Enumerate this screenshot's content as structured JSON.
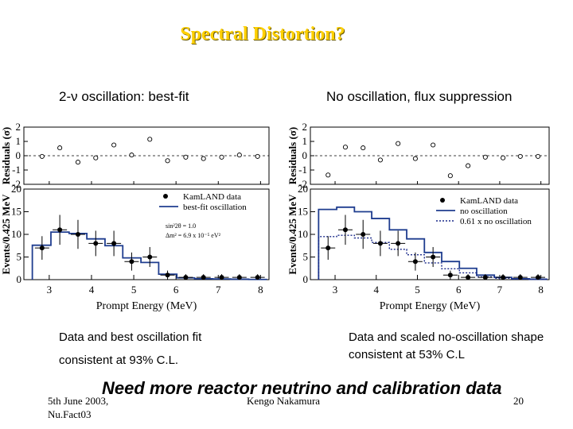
{
  "slide": {
    "title": "Spectral Distortion?",
    "left_title": "2-ν oscillation: best-fit",
    "right_title": "No oscillation, flux suppression",
    "left_caption_1": "Data and best oscillation fit",
    "left_caption_2": "consistent at 93% C.L.",
    "right_caption": "Data and scaled no-oscillation shape consistent at 53% C.L",
    "note": "Need more reactor neutrino and calibration data",
    "footer_date": "5th June 2003,",
    "footer_conf": "Nu.Fact03",
    "footer_author": "Kengo Nakamura",
    "page_number": "20"
  },
  "chart_data": [
    {
      "type": "line",
      "title": "2-ν oscillation: best-fit",
      "xlabel": "Prompt Energy (MeV)",
      "ylabel_top": "Residuals (σ)",
      "ylabel_bottom": "Events/0.425 MeV",
      "xlim": [
        2.4,
        8.2
      ],
      "ylim_residual": [
        -2,
        2
      ],
      "ylim_events": [
        0,
        20
      ],
      "x_ticks": [
        3,
        4,
        5,
        6,
        7,
        8
      ],
      "residual_ticks": [
        -2,
        -1,
        0,
        1,
        2
      ],
      "event_ticks": [
        0,
        5,
        10,
        15,
        20
      ],
      "legend": [
        "KamLAND data",
        "best-fit oscillation"
      ],
      "fit_params": [
        "sin²2θ = 1.0",
        "Δm² = 6.9 x 10⁻⁵ eV²"
      ],
      "residuals": {
        "x": [
          2.83,
          3.25,
          3.68,
          4.1,
          4.53,
          4.95,
          5.38,
          5.8,
          6.23,
          6.65,
          7.08,
          7.5,
          7.93
        ],
        "y": [
          -0.05,
          0.55,
          -0.45,
          -0.15,
          0.75,
          0.05,
          1.15,
          -0.35,
          -0.1,
          -0.2,
          -0.1,
          0.05,
          -0.05
        ]
      },
      "data_points": {
        "x": [
          2.83,
          3.25,
          3.68,
          4.1,
          4.53,
          4.95,
          5.38,
          5.8,
          6.23,
          6.65,
          7.08,
          7.5,
          7.93
        ],
        "y": [
          7,
          11,
          10,
          8,
          8,
          4,
          5,
          1,
          0.5,
          0.5,
          0.5,
          0.5,
          0.5
        ],
        "err": [
          2.6,
          3.3,
          3.2,
          2.8,
          2.8,
          2.0,
          2.2,
          1.0,
          0.7,
          0.7,
          0.7,
          0.7,
          0.7
        ]
      },
      "series": [
        {
          "name": "best-fit oscillation",
          "style": "solid",
          "edges": [
            2.6,
            3.04,
            3.47,
            3.89,
            4.32,
            4.74,
            5.17,
            5.59,
            6.02,
            6.44,
            6.87,
            7.29,
            7.72,
            8.14
          ],
          "values": [
            7.6,
            10.5,
            10.2,
            9.0,
            7.5,
            4.8,
            3.8,
            1.2,
            0.4,
            0.2,
            0.15,
            0.1,
            0.05
          ]
        }
      ]
    },
    {
      "type": "line",
      "title": "No oscillation, flux suppression",
      "xlabel": "Prompt Energy (MeV)",
      "ylabel_top": "Residuals (σ)",
      "ylabel_bottom": "Events/0.425 MeV",
      "xlim": [
        2.4,
        8.2
      ],
      "ylim_residual": [
        -2,
        2
      ],
      "ylim_events": [
        0,
        20
      ],
      "x_ticks": [
        3,
        4,
        5,
        6,
        7,
        8
      ],
      "residual_ticks": [
        -2,
        -1,
        0,
        1,
        2
      ],
      "event_ticks": [
        0,
        5,
        10,
        15,
        20
      ],
      "legend": [
        "KamLAND data",
        "no oscillation",
        "0.61 x no oscillation"
      ],
      "residuals": {
        "x": [
          2.83,
          3.25,
          3.68,
          4.1,
          4.53,
          4.95,
          5.38,
          5.8,
          6.23,
          6.65,
          7.08,
          7.5,
          7.93
        ],
        "y": [
          -1.35,
          0.6,
          0.55,
          -0.3,
          0.85,
          -0.2,
          0.75,
          -1.4,
          -0.7,
          -0.1,
          -0.15,
          -0.05,
          -0.05
        ]
      },
      "data_points": {
        "x": [
          2.83,
          3.25,
          3.68,
          4.1,
          4.53,
          4.95,
          5.38,
          5.8,
          6.23,
          6.65,
          7.08,
          7.5,
          7.93
        ],
        "y": [
          7,
          11,
          10,
          8,
          8,
          4,
          5,
          1,
          0.5,
          0.5,
          0.5,
          0.5,
          0.5
        ],
        "err": [
          2.6,
          3.3,
          3.2,
          2.8,
          2.8,
          2.0,
          2.2,
          1.0,
          0.7,
          0.7,
          0.7,
          0.7,
          0.7
        ]
      },
      "series": [
        {
          "name": "no oscillation",
          "style": "solid",
          "edges": [
            2.6,
            3.04,
            3.47,
            3.89,
            4.32,
            4.74,
            5.17,
            5.59,
            6.02,
            6.44,
            6.87,
            7.29,
            7.72,
            8.14
          ],
          "values": [
            15.5,
            16.0,
            15.0,
            13.5,
            11.0,
            9.0,
            6.0,
            4.0,
            2.5,
            1.0,
            0.5,
            0.2,
            0.1
          ]
        },
        {
          "name": "0.61 x no oscillation",
          "style": "dotted",
          "edges": [
            2.6,
            3.04,
            3.47,
            3.89,
            4.32,
            4.74,
            5.17,
            5.59,
            6.02,
            6.44,
            6.87,
            7.29,
            7.72,
            8.14
          ],
          "values": [
            9.5,
            9.8,
            9.2,
            8.2,
            6.7,
            5.5,
            3.7,
            2.4,
            1.5,
            0.6,
            0.3,
            0.12,
            0.06
          ]
        }
      ]
    }
  ]
}
